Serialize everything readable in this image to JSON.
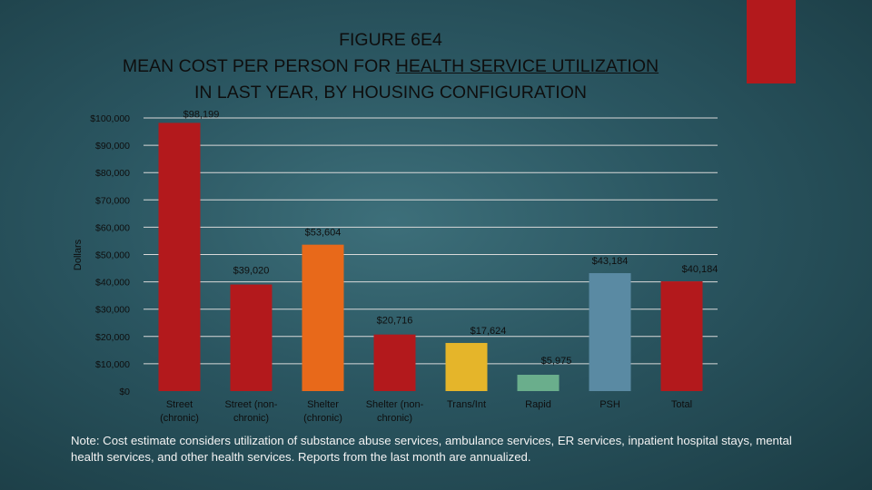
{
  "title": {
    "line1": "FIGURE 6E4",
    "line2_pre": "MEAN COST PER PERSON FOR ",
    "line2_underlined": "HEALTH SERVICE UTILIZATION",
    "line3": "IN LAST YEAR, BY HOUSING CONFIGURATION"
  },
  "colors": {
    "accent": "#b3191c",
    "grid": "#d9d9d9",
    "text": "#0e0e0e"
  },
  "chart_data": {
    "type": "bar",
    "ylabel": "Dollars",
    "ylim": [
      0,
      100000
    ],
    "yticks": [
      0,
      10000,
      20000,
      30000,
      40000,
      50000,
      60000,
      70000,
      80000,
      90000,
      100000
    ],
    "ytick_labels": [
      "$0",
      "$10,000",
      "$20,000",
      "$30,000",
      "$40,000",
      "$50,000",
      "$60,000",
      "$70,000",
      "$80,000",
      "$90,000",
      "$100,000"
    ],
    "categories": [
      [
        "Street",
        "(chronic)"
      ],
      [
        "Street (non-",
        "chronic)"
      ],
      [
        "Shelter",
        "(chronic)"
      ],
      [
        "Shelter (non-",
        "chronic)"
      ],
      [
        "Trans/Int"
      ],
      [
        "Rapid"
      ],
      [
        "PSH"
      ],
      [
        "Total"
      ]
    ],
    "values": [
      98199,
      39020,
      53604,
      20716,
      17624,
      5975,
      43184,
      40184
    ],
    "value_labels": [
      "$98,199",
      "$39,020",
      "$53,604",
      "$20,716",
      "$17,624",
      "$5,975",
      "$43,184",
      "$40,184"
    ],
    "bar_colors": [
      "#b3191c",
      "#b3191c",
      "#e8691a",
      "#b3191c",
      "#e5b52a",
      "#6aae8c",
      "#5a8aa3",
      "#b3191c"
    ],
    "grid": true,
    "legend": "none"
  },
  "note": "Note: Cost estimate considers utilization of substance abuse services, ambulance services, ER services, inpatient hospital stays, mental health services, and other health services. Reports from the last month are annualized."
}
